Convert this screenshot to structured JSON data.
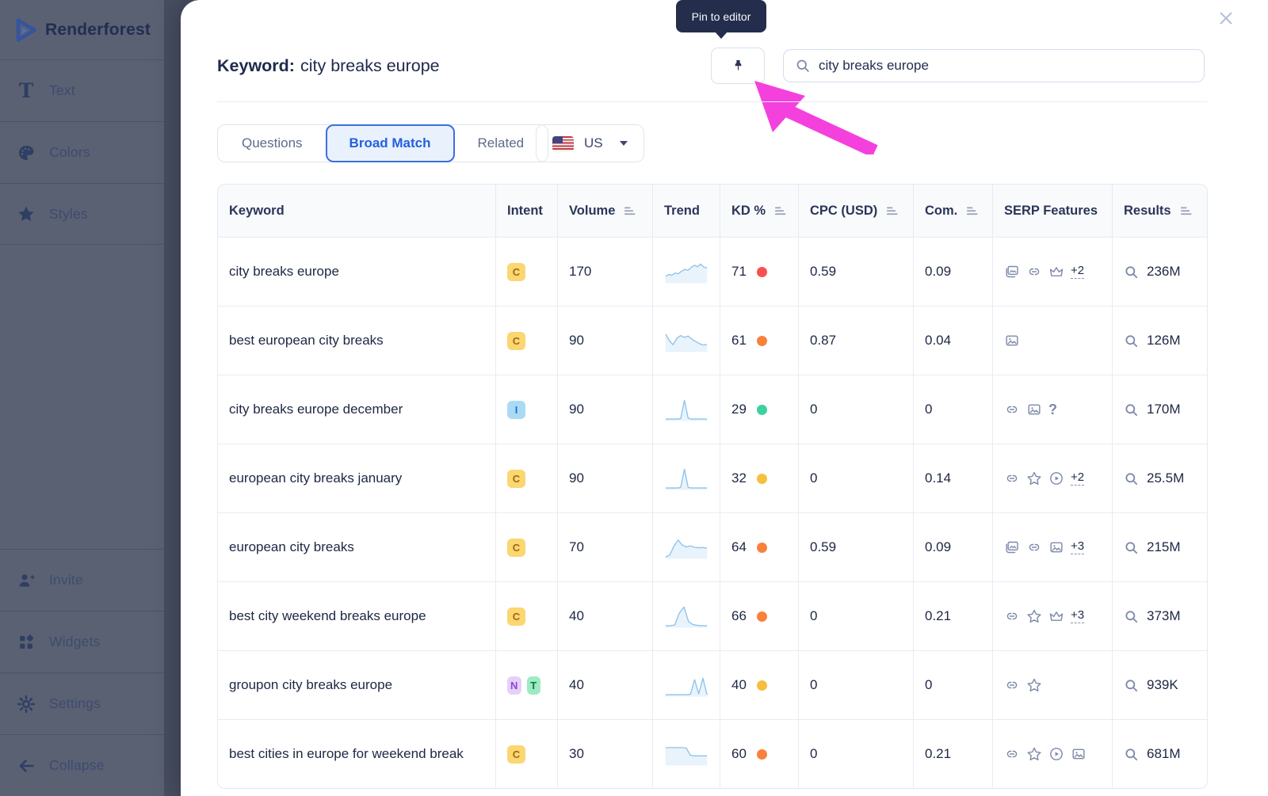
{
  "sidebar": {
    "logo_text": "Renderforest",
    "items_top": [
      {
        "label": "Text",
        "icon": "text-icon"
      },
      {
        "label": "Colors",
        "icon": "palette-icon"
      },
      {
        "label": "Styles",
        "icon": "star-icon"
      }
    ],
    "items_bottom": [
      {
        "label": "Invite",
        "icon": "invite-icon"
      },
      {
        "label": "Widgets",
        "icon": "widgets-icon"
      },
      {
        "label": "Settings",
        "icon": "gear-icon"
      },
      {
        "label": "Collapse",
        "icon": "arrow-left-icon"
      }
    ]
  },
  "modal": {
    "title_label": "Keyword:",
    "title_value": "city breaks europe",
    "tooltip": "Pin to editor",
    "search_value": "city breaks europe",
    "tabs": [
      {
        "label": "Questions",
        "active": false
      },
      {
        "label": "Broad Match",
        "active": true
      },
      {
        "label": "Related",
        "active": false
      }
    ],
    "region": {
      "code": "US",
      "flag": "us-flag-icon"
    }
  },
  "table": {
    "columns": [
      {
        "label": "Keyword",
        "sortable": false
      },
      {
        "label": "Intent",
        "sortable": false
      },
      {
        "label": "Volume",
        "sortable": true
      },
      {
        "label": "Trend",
        "sortable": false
      },
      {
        "label": "KD %",
        "sortable": true
      },
      {
        "label": "CPC (USD)",
        "sortable": true
      },
      {
        "label": "Com.",
        "sortable": true
      },
      {
        "label": "SERP Features",
        "sortable": false
      },
      {
        "label": "Results",
        "sortable": true
      }
    ],
    "rows": [
      {
        "keyword": "city breaks europe",
        "intents": [
          "C"
        ],
        "volume": "170",
        "trend": [
          3.0,
          3.8,
          3.4,
          4.4,
          4.1,
          5.2,
          6.0,
          5.6,
          6.8,
          7.8,
          7.2,
          8.3,
          7.0,
          6.6
        ],
        "kd": "71",
        "kd_level": "red",
        "cpc": "0.59",
        "com": "0.09",
        "serp": [
          "image-stack",
          "link",
          "crown"
        ],
        "serp_more": "+2",
        "results": "236M"
      },
      {
        "keyword": "best european city breaks",
        "intents": [
          "C"
        ],
        "volume": "90",
        "trend": [
          7.8,
          5.0,
          3.2,
          6.0,
          7.2,
          6.4,
          7.0,
          5.6,
          4.6,
          3.6,
          3.1,
          3.3
        ],
        "kd": "61",
        "kd_level": "orange",
        "cpc": "0.87",
        "com": "0.04",
        "serp": [
          "image"
        ],
        "serp_more": "",
        "results": "126M"
      },
      {
        "keyword": "city breaks europe december",
        "intents": [
          "I"
        ],
        "volume": "90",
        "trend": [
          0.8,
          0.8,
          0.8,
          0.8,
          1.0,
          9.0,
          1.2,
          0.8,
          0.8,
          0.8,
          0.8,
          0.8
        ],
        "kd": "29",
        "kd_level": "green",
        "cpc": "0",
        "com": "0",
        "serp": [
          "link",
          "image",
          "question"
        ],
        "serp_more": "",
        "results": "170M"
      },
      {
        "keyword": "european city breaks january",
        "intents": [
          "C"
        ],
        "volume": "90",
        "trend": [
          0.8,
          0.8,
          0.8,
          0.8,
          1.0,
          9.0,
          1.0,
          0.8,
          0.8,
          0.8,
          0.8,
          0.8
        ],
        "kd": "32",
        "kd_level": "yellow",
        "cpc": "0",
        "com": "0.14",
        "serp": [
          "link",
          "star",
          "play"
        ],
        "serp_more": "+2",
        "results": "25.5M"
      },
      {
        "keyword": "european city breaks",
        "intents": [
          "C"
        ],
        "volume": "70",
        "trend": [
          0.8,
          1.6,
          5.4,
          8.2,
          6.0,
          5.2,
          5.6,
          5.0,
          4.8,
          4.9,
          4.6
        ],
        "kd": "64",
        "kd_level": "orange",
        "cpc": "0.59",
        "com": "0.09",
        "serp": [
          "image-stack",
          "link",
          "image"
        ],
        "serp_more": "+3",
        "results": "215M"
      },
      {
        "keyword": "best city weekend breaks europe",
        "intents": [
          "C"
        ],
        "volume": "40",
        "trend": [
          0.8,
          0.8,
          1.2,
          6.4,
          9.0,
          2.6,
          1.3,
          1.0,
          0.8,
          0.8
        ],
        "kd": "66",
        "kd_level": "orange",
        "cpc": "0",
        "com": "0.21",
        "serp": [
          "link",
          "star",
          "crown"
        ],
        "serp_more": "+3",
        "results": "373M"
      },
      {
        "keyword": "groupon city breaks europe",
        "intents": [
          "N",
          "T"
        ],
        "volume": "40",
        "trend": [
          0.8,
          0.8,
          0.8,
          0.8,
          0.8,
          0.8,
          1.0,
          7.4,
          1.2,
          8.0,
          0.8
        ],
        "kd": "40",
        "kd_level": "yellow",
        "cpc": "0",
        "com": "0",
        "serp": [
          "link",
          "star"
        ],
        "serp_more": "",
        "results": "939K"
      },
      {
        "keyword": "best cities in europe for weekend break",
        "intents": [
          "C"
        ],
        "volume": "30",
        "trend": [
          7.8,
          7.8,
          7.8,
          7.8,
          7.8,
          7.6,
          4.4,
          4.2,
          4.2,
          4.2,
          4.2
        ],
        "kd": "60",
        "kd_level": "orange",
        "cpc": "0",
        "com": "0.21",
        "serp": [
          "link",
          "star",
          "play",
          "image"
        ],
        "serp_more": "",
        "results": "681M"
      }
    ]
  },
  "colors": {
    "kd_levels": {
      "red": "#fb4e4e",
      "orange": "#f9813b",
      "yellow": "#f7bf3d",
      "green": "#3ed0a0"
    },
    "intent": {
      "C": {
        "bg": "#fbd671",
        "fg": "#9c6a14"
      },
      "I": {
        "bg": "#abdaf5",
        "fg": "#1479cc"
      },
      "N": {
        "bg": "#e5d1f8",
        "fg": "#8f44d6"
      },
      "T": {
        "bg": "#9debc2",
        "fg": "#19734a"
      }
    },
    "spark_line": "#8fc3ea",
    "spark_fill": "#e8f3fb",
    "annotation_arrow": "#f441dd",
    "accent_blue": "#2460dc",
    "tooltip_bg": "#242e4c"
  }
}
